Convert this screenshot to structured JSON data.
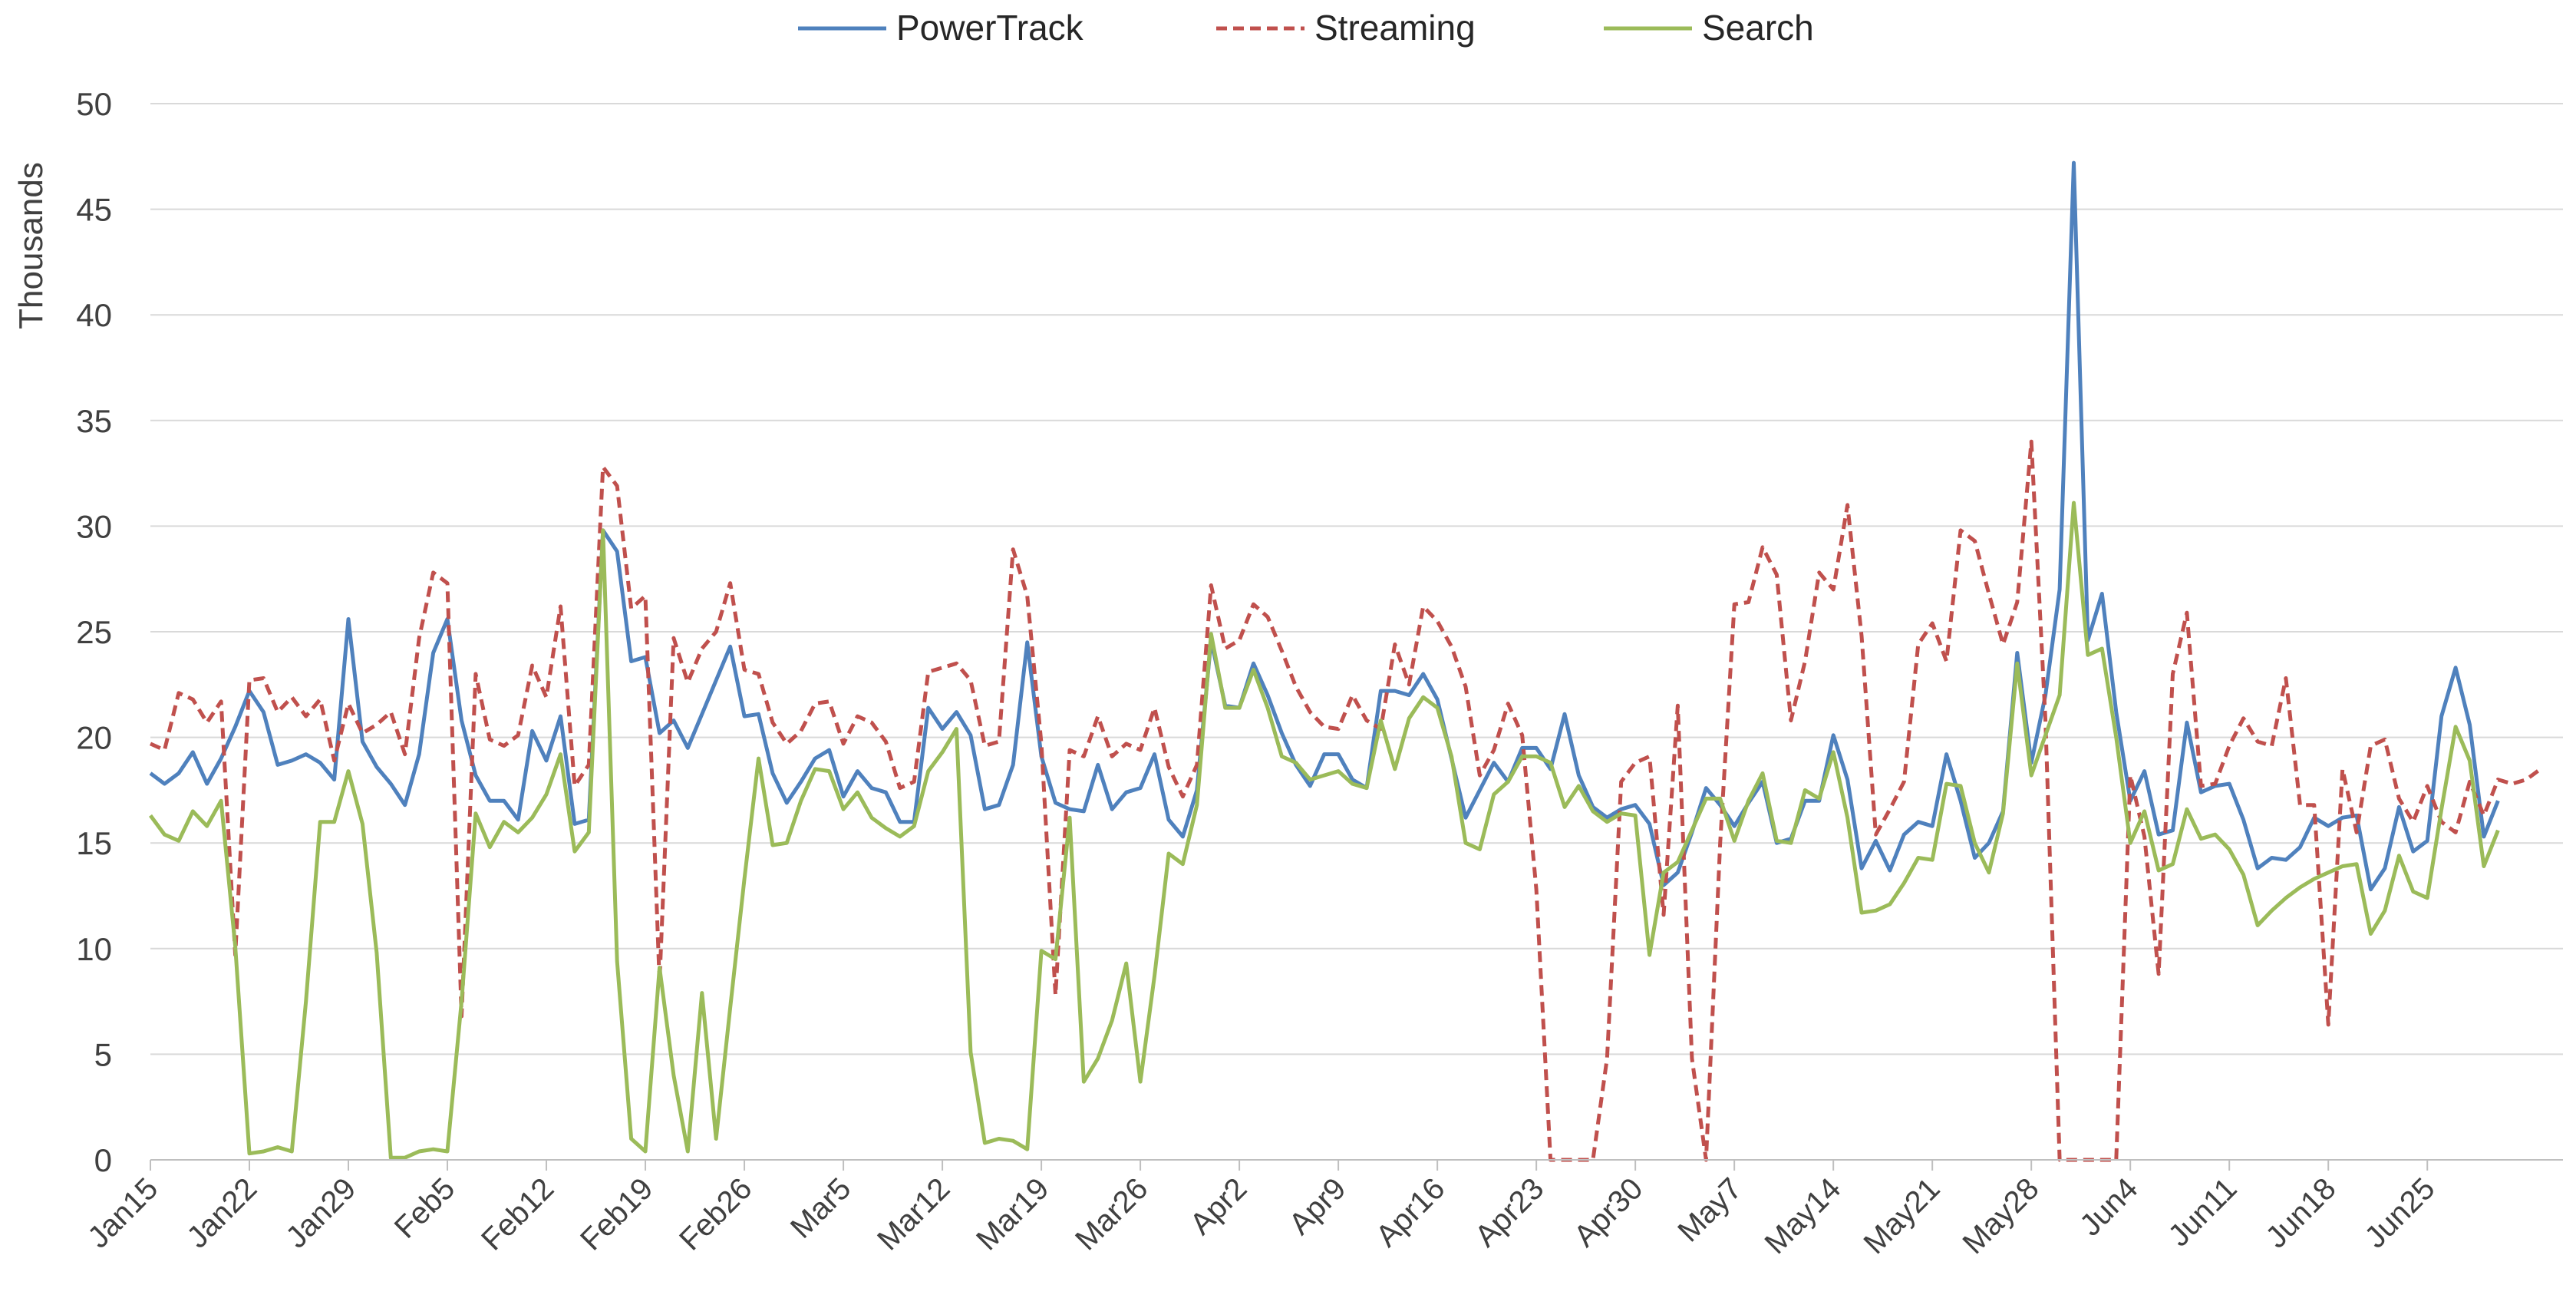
{
  "chart_data": {
    "type": "line",
    "title": "",
    "xlabel": "",
    "ylabel": "Thousands",
    "ylim": [
      0,
      50
    ],
    "yticks": [
      0,
      5,
      10,
      15,
      20,
      25,
      30,
      35,
      40,
      45,
      50
    ],
    "grid": true,
    "legend_position": "top",
    "x_axis": {
      "start_date": "Jan15",
      "tick_labels": [
        "Jan15",
        "Jan22",
        "Jan29",
        "Feb5",
        "Feb12",
        "Feb19",
        "Feb26",
        "Mar5",
        "Mar12",
        "Mar19",
        "Mar26",
        "Apr2",
        "Apr9",
        "Apr16",
        "Apr23",
        "Apr30",
        "May7",
        "May14",
        "May21",
        "May28",
        "Jun4",
        "Jun11",
        "Jun18",
        "Jun25"
      ]
    },
    "series": [
      {
        "name": "PowerTrack",
        "color": "#4F81BD",
        "dash": "solid",
        "values": [
          18.3,
          17.8,
          18.3,
          19.3,
          17.8,
          19.0,
          20.5,
          22.2,
          21.2,
          18.7,
          18.9,
          19.2,
          18.8,
          18.0,
          25.6,
          19.8,
          18.6,
          17.8,
          16.8,
          19.2,
          24.0,
          25.6,
          20.8,
          18.2,
          17.0,
          17.0,
          16.1,
          20.3,
          18.9,
          21.0,
          15.9,
          16.1,
          29.8,
          28.8,
          23.6,
          23.8,
          20.2,
          20.8,
          19.5,
          21.1,
          22.7,
          24.3,
          21.0,
          21.1,
          18.3,
          16.9,
          17.9,
          19.0,
          19.4,
          17.2,
          18.4,
          17.6,
          17.4,
          16.0,
          16.0,
          21.4,
          20.4,
          21.2,
          20.1,
          16.6,
          16.8,
          18.7,
          24.5,
          19.1,
          16.9,
          16.6,
          16.5,
          18.7,
          16.6,
          17.4,
          17.6,
          19.2,
          16.1,
          15.3,
          17.5,
          24.6,
          21.5,
          21.4,
          23.5,
          22.0,
          20.2,
          18.7,
          17.7,
          19.2,
          19.2,
          18.0,
          17.6,
          22.2,
          22.2,
          22.0,
          23.0,
          21.8,
          19.0,
          16.2,
          17.5,
          18.8,
          17.9,
          19.5,
          19.5,
          18.5,
          21.1,
          18.2,
          16.7,
          16.2,
          16.6,
          16.8,
          15.9,
          13.0,
          13.6,
          15.5,
          17.6,
          16.8,
          15.8,
          16.9,
          17.9,
          15.0,
          15.2,
          17.0,
          17.0,
          20.1,
          18.0,
          13.8,
          15.1,
          13.7,
          15.4,
          16.0,
          15.8,
          19.2,
          17.0,
          14.3,
          15.0,
          16.5,
          24.0,
          18.8,
          22.0,
          27.0,
          47.2,
          24.6,
          26.8,
          21.2,
          17.0,
          18.4,
          15.4,
          15.6,
          20.7,
          17.4,
          17.7,
          17.8,
          16.1,
          13.8,
          14.3,
          14.2,
          14.8,
          16.2,
          15.8,
          16.2,
          16.3,
          12.8,
          13.8,
          16.7,
          14.6,
          15.1,
          21.0,
          23.3,
          20.6,
          15.3,
          17.0
        ]
      },
      {
        "name": "Streaming",
        "color": "#C0504D",
        "dash": "dashed",
        "values": [
          19.7,
          19.4,
          22.1,
          21.8,
          20.7,
          21.7,
          9.7,
          22.7,
          22.8,
          21.2,
          21.9,
          21.0,
          21.8,
          18.9,
          21.6,
          20.2,
          20.6,
          21.2,
          19.2,
          24.7,
          27.8,
          27.3,
          6.8,
          23.0,
          19.9,
          19.6,
          20.1,
          23.4,
          21.9,
          26.2,
          17.7,
          18.7,
          32.8,
          31.9,
          26.1,
          26.7,
          8.4,
          24.7,
          22.6,
          24.2,
          25.0,
          27.3,
          23.2,
          23.0,
          20.7,
          19.7,
          20.3,
          21.6,
          21.7,
          19.7,
          21.0,
          20.7,
          19.8,
          17.6,
          17.9,
          23.1,
          23.3,
          23.5,
          22.7,
          19.6,
          19.8,
          28.9,
          26.7,
          19.7,
          7.8,
          19.4,
          19.1,
          21.0,
          19.1,
          19.7,
          19.4,
          21.4,
          18.6,
          17.2,
          18.7,
          27.2,
          24.2,
          24.6,
          26.3,
          25.7,
          24.1,
          22.4,
          21.2,
          20.5,
          20.4,
          22.0,
          20.8,
          20.4,
          24.4,
          22.5,
          26.2,
          25.5,
          24.3,
          22.4,
          18.2,
          19.4,
          21.6,
          20.1,
          12.8,
          0,
          0,
          0,
          0,
          4.8,
          17.9,
          18.8,
          19.1,
          11.6,
          21.5,
          4.8,
          0,
          15.0,
          26.3,
          26.4,
          29.0,
          27.7,
          20.8,
          23.6,
          27.8,
          27.0,
          31.0,
          24.8,
          15.4,
          16.6,
          17.9,
          24.4,
          25.4,
          23.6,
          29.8,
          29.3,
          26.8,
          24.4,
          26.4,
          34.0,
          20.8,
          0,
          0,
          0,
          0,
          0,
          18.2,
          15.3,
          8.8,
          23.0,
          25.9,
          17.7,
          17.8,
          19.6,
          20.9,
          19.8,
          19.6,
          22.8,
          16.8,
          16.8,
          6.4,
          18.5,
          15.5,
          19.6,
          19.9,
          17.1,
          16.0,
          17.7,
          16.0,
          15.5,
          17.9,
          16.3,
          18.0,
          17.8,
          18.0,
          18.5
        ]
      },
      {
        "name": "Search",
        "color": "#9BBB59",
        "dash": "solid",
        "values": [
          16.3,
          15.4,
          15.1,
          16.5,
          15.8,
          17.0,
          10.1,
          0.3,
          0.4,
          0.6,
          0.4,
          7.5,
          16.0,
          16.0,
          18.4,
          15.9,
          9.8,
          0.1,
          0.1,
          0.4,
          0.5,
          0.4,
          7.5,
          16.4,
          14.8,
          16.0,
          15.5,
          16.2,
          17.3,
          19.2,
          14.6,
          15.5,
          29.8,
          9.4,
          1.0,
          0.4,
          9.1,
          4.0,
          0.4,
          7.9,
          1.0,
          7.2,
          13.3,
          19.0,
          14.9,
          15.0,
          17.0,
          18.5,
          18.4,
          16.6,
          17.4,
          16.2,
          15.7,
          15.3,
          15.8,
          18.4,
          19.3,
          20.4,
          5.1,
          0.8,
          1.0,
          0.9,
          0.5,
          9.9,
          9.5,
          16.2,
          3.7,
          4.8,
          6.6,
          9.3,
          3.7,
          8.7,
          14.5,
          14.0,
          16.8,
          24.9,
          21.4,
          21.4,
          23.2,
          21.4,
          19.1,
          18.8,
          18.0,
          18.2,
          18.4,
          17.8,
          17.6,
          20.8,
          18.5,
          20.9,
          21.9,
          21.4,
          19.1,
          15.0,
          14.7,
          17.3,
          17.9,
          19.1,
          19.1,
          18.8,
          16.7,
          17.7,
          16.5,
          16.0,
          16.4,
          16.3,
          9.7,
          13.6,
          14.1,
          15.6,
          17.1,
          17.1,
          15.1,
          17.0,
          18.3,
          15.1,
          15.0,
          17.5,
          17.1,
          19.3,
          16.2,
          11.7,
          11.8,
          12.1,
          13.1,
          14.3,
          14.2,
          17.8,
          17.7,
          15.0,
          13.6,
          16.4,
          23.5,
          18.2,
          20.1,
          22.0,
          31.1,
          23.9,
          24.2,
          20.0,
          15.0,
          16.5,
          13.7,
          14.0,
          16.6,
          15.2,
          15.4,
          14.7,
          13.5,
          11.1,
          11.8,
          12.4,
          12.9,
          13.3,
          13.6,
          13.9,
          14.0,
          10.7,
          11.8,
          14.4,
          12.7,
          12.4,
          16.6,
          20.5,
          18.9,
          13.9,
          15.6
        ]
      }
    ]
  }
}
